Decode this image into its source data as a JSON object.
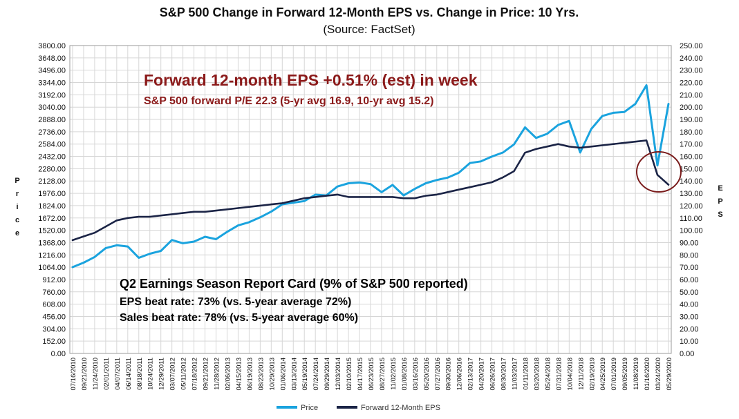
{
  "chart_data": {
    "type": "line",
    "title": "S&P 500 Change in Forward 12-Month EPS vs. Change in Price: 10 Yrs.",
    "subtitle": "(Source: FactSet)",
    "ylabel": "Price",
    "y2label": "EPS",
    "ylim": [
      0,
      3800
    ],
    "y2lim": [
      0,
      250
    ],
    "y_ticks": [
      "3800.00",
      "3648.00",
      "3496.00",
      "3344.00",
      "3192.00",
      "3040.00",
      "2888.00",
      "2736.00",
      "2584.00",
      "2432.00",
      "2280.00",
      "2128.00",
      "1976.00",
      "1824.00",
      "1672.00",
      "1520.00",
      "1368.00",
      "1216.00",
      "1064.00",
      "912.00",
      "760.00",
      "608.00",
      "456.00",
      "304.00",
      "152.00",
      "0.00"
    ],
    "y2_ticks": [
      "250.00",
      "240.00",
      "230.00",
      "220.00",
      "210.00",
      "200.00",
      "190.00",
      "180.00",
      "170.00",
      "160.00",
      "150.00",
      "140.00",
      "130.00",
      "120.00",
      "110.00",
      "100.00",
      "90.00",
      "80.00",
      "70.00",
      "60.00",
      "50.00",
      "40.00",
      "30.00",
      "20.00",
      "10.00",
      "0.00"
    ],
    "x_ticks": [
      "07/16/2010",
      "09/21/2010",
      "11/24/2010",
      "02/01/2011",
      "04/07/2011",
      "06/14/2011",
      "08/18/2011",
      "10/24/2011",
      "12/29/2011",
      "03/07/2012",
      "05/11/2012",
      "07/18/2012",
      "09/21/2012",
      "11/28/2012",
      "02/06/2013",
      "04/15/2013",
      "06/19/2013",
      "08/23/2013",
      "10/29/2013",
      "01/06/2014",
      "03/13/2014",
      "05/19/2014",
      "07/24/2014",
      "09/29/2014",
      "12/03/2014",
      "02/10/2015",
      "04/17/2015",
      "06/23/2015",
      "08/27/2015",
      "11/02/2015",
      "01/08/2016",
      "03/16/2016",
      "05/20/2016",
      "07/27/2016",
      "09/30/2016",
      "12/06/2016",
      "02/13/2017",
      "04/20/2017",
      "06/26/2017",
      "08/30/2017",
      "11/03/2017",
      "01/11/2018",
      "03/20/2018",
      "05/24/2018",
      "07/31/2018",
      "10/04/2018",
      "12/11/2018",
      "02/19/2019",
      "04/25/2019",
      "07/01/2019",
      "09/05/2019",
      "11/08/2019",
      "01/16/2020",
      "03/24/2020",
      "05/29/2020"
    ],
    "series": [
      {
        "name": "Price",
        "color": "#1AA3DE",
        "values": [
          1065,
          1120,
          1190,
          1300,
          1335,
          1320,
          1180,
          1230,
          1265,
          1400,
          1360,
          1380,
          1440,
          1410,
          1500,
          1580,
          1620,
          1680,
          1750,
          1840,
          1860,
          1880,
          1960,
          1950,
          2060,
          2100,
          2110,
          2090,
          1990,
          2080,
          1950,
          2030,
          2100,
          2140,
          2170,
          2230,
          2350,
          2370,
          2430,
          2480,
          2580,
          2790,
          2660,
          2710,
          2820,
          2870,
          2480,
          2770,
          2930,
          2970,
          2980,
          3080,
          3310,
          2320,
          3080
        ]
      },
      {
        "name": "Forward 12-Month EPS",
        "color": "#1B2446",
        "values": [
          92,
          95,
          98,
          103,
          108,
          110,
          111,
          111,
          112,
          113,
          114,
          115,
          115,
          116,
          117,
          118,
          119,
          120,
          121,
          122,
          124,
          126,
          127,
          128,
          129,
          127,
          127,
          127,
          127,
          127,
          126,
          126,
          128,
          129,
          131,
          133,
          135,
          137,
          139,
          143,
          148,
          163,
          166,
          168,
          170,
          168,
          167,
          168,
          169,
          170,
          171,
          172,
          173,
          145,
          137
        ]
      }
    ],
    "annotations": {
      "headline": "Forward 12-month EPS +0.51% (est) in week",
      "pe_note": "S&P 500 forward P/E 22.3 (5-yr avg 16.9, 10-yr avg 15.2)",
      "report_title": "Q2 Earnings Season Report Card (9% of S&P 500 reported)",
      "eps_beat": "EPS beat rate: 73% (vs. 5-year average 72%)",
      "sales_beat": "Sales beat rate: 78% (vs. 5-year average 60%)"
    },
    "legend": [
      "Price",
      "Forward 12-Month EPS"
    ],
    "legend_position": "bottom",
    "grid": true
  }
}
